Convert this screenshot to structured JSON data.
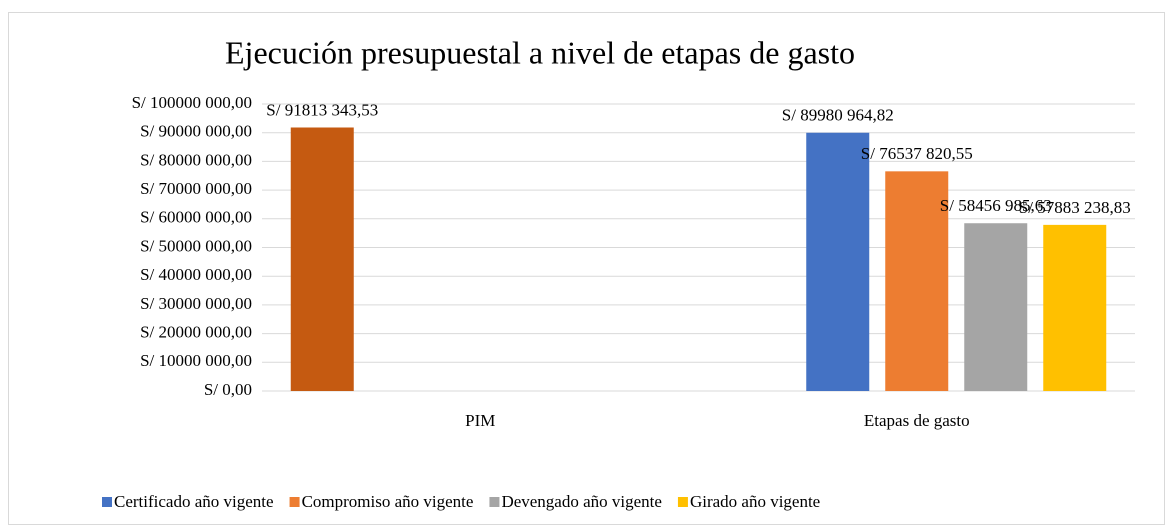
{
  "chart_data": {
    "type": "bar",
    "title": "Ejecución presupuestal a nivel de etapas de gasto",
    "categories": [
      "PIM",
      "Etapas de gasto"
    ],
    "series": [
      {
        "color": "#c55a11",
        "values": [
          91813343.53,
          null
        ],
        "value_labels": [
          "S/ 91813 343,53",
          null
        ]
      },
      {
        "name": "Certificado año vigente",
        "color": "#4472c4",
        "values": [
          null,
          89980964.82
        ],
        "value_labels": [
          null,
          "S/ 89980 964,82"
        ]
      },
      {
        "name": "Compromiso año vigente",
        "color": "#ed7d31",
        "values": [
          null,
          76537820.55
        ],
        "value_labels": [
          null,
          "S/ 76537 820,55"
        ]
      },
      {
        "name": "Devengado año vigente",
        "color": "#a5a5a5",
        "values": [
          null,
          58456985.63
        ],
        "value_labels": [
          null,
          "S/ 58456 985,63"
        ]
      },
      {
        "name": "Girado año vigente",
        "color": "#ffc000",
        "values": [
          null,
          57883238.83
        ],
        "value_labels": [
          null,
          "S/ 57883 238,83"
        ]
      }
    ],
    "ylim": [
      0,
      100000000
    ],
    "yticks": [
      {
        "value": 0,
        "label": "S/  0,00"
      },
      {
        "value": 10000000,
        "label": "S/ 10000 000,00"
      },
      {
        "value": 20000000,
        "label": "S/ 20000 000,00"
      },
      {
        "value": 30000000,
        "label": "S/ 30000 000,00"
      },
      {
        "value": 40000000,
        "label": "S/ 40000 000,00"
      },
      {
        "value": 50000000,
        "label": "S/ 50000 000,00"
      },
      {
        "value": 60000000,
        "label": "S/ 60000 000,00"
      },
      {
        "value": 70000000,
        "label": "S/ 70000 000,00"
      },
      {
        "value": 80000000,
        "label": "S/ 80000 000,00"
      },
      {
        "value": 90000000,
        "label": "S/ 90000 000,00"
      },
      {
        "value": 100000000,
        "label": "S/ 100000 000,00"
      }
    ],
    "grid": true,
    "legend": "bottom"
  }
}
